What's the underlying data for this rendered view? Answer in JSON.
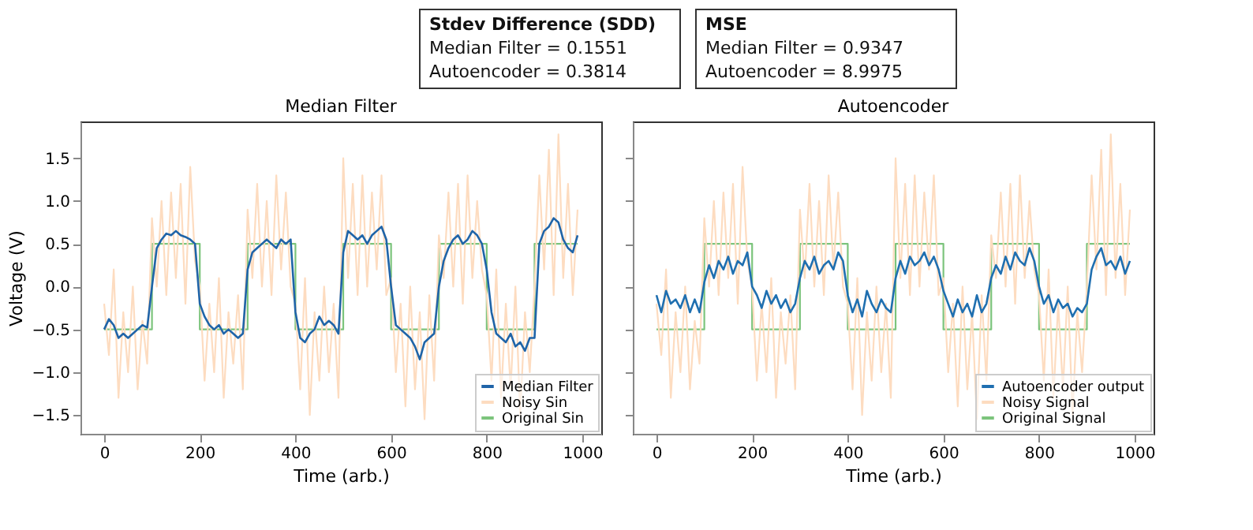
{
  "chart_data": [
    {
      "type": "other",
      "annotations": [
        "Stdev Difference (SDD)\nMedian Filter = 0.1551\nAutoencoder = 0.3814",
        "MSE\nMedian Filter = 0.9347\nAutoencoder = 8.9975"
      ]
    },
    {
      "type": "line",
      "title": "Median Filter",
      "xlabel": "Time (arb.)",
      "ylabel": "Voltage (V)",
      "xlim": [
        -49.5,
        1039.5
      ],
      "ylim": [
        -1.72,
        1.93
      ],
      "xticks": [
        0,
        200,
        400,
        600,
        800,
        1000
      ],
      "yticks": [
        -1.5,
        {
          "value": -1,
          "label": "−1.0"
        },
        -0.5,
        {
          "value": 0,
          "label": "0.0"
        },
        0.5,
        {
          "value": 1,
          "label": "1.0"
        },
        1.5
      ],
      "grid": false,
      "legend": "bottom right",
      "x": [
        0,
        10,
        20,
        30,
        40,
        50,
        60,
        70,
        80,
        90,
        100,
        110,
        120,
        130,
        140,
        150,
        160,
        170,
        180,
        190,
        200,
        210,
        220,
        230,
        240,
        250,
        260,
        270,
        280,
        290,
        300,
        310,
        320,
        330,
        340,
        350,
        360,
        370,
        380,
        390,
        400,
        410,
        420,
        430,
        440,
        450,
        460,
        470,
        480,
        490,
        500,
        510,
        520,
        530,
        540,
        550,
        560,
        570,
        580,
        590,
        600,
        610,
        620,
        630,
        640,
        650,
        660,
        670,
        680,
        690,
        700,
        710,
        720,
        730,
        740,
        750,
        760,
        770,
        780,
        790,
        800,
        810,
        820,
        830,
        840,
        850,
        860,
        870,
        880,
        890,
        900,
        910,
        920,
        930,
        940,
        950,
        960,
        970,
        980,
        990
      ],
      "series": [
        {
          "name": "Median Filter",
          "color": "#1f64a8",
          "type": "line",
          "values": [
            -0.5,
            -0.38,
            -0.45,
            -0.6,
            -0.55,
            -0.6,
            -0.55,
            -0.5,
            -0.45,
            -0.48,
            0.0,
            0.45,
            0.55,
            0.62,
            0.6,
            0.65,
            0.6,
            0.58,
            0.55,
            0.5,
            -0.2,
            -0.35,
            -0.45,
            -0.5,
            -0.45,
            -0.55,
            -0.5,
            -0.55,
            -0.6,
            -0.55,
            0.2,
            0.4,
            0.45,
            0.5,
            0.55,
            0.5,
            0.45,
            0.55,
            0.5,
            0.55,
            -0.3,
            -0.6,
            -0.65,
            -0.55,
            -0.5,
            -0.35,
            -0.45,
            -0.4,
            -0.45,
            -0.55,
            0.4,
            0.65,
            0.6,
            0.55,
            0.6,
            0.5,
            0.6,
            0.65,
            0.7,
            0.55,
            0.0,
            -0.45,
            -0.5,
            -0.55,
            -0.6,
            -0.7,
            -0.85,
            -0.65,
            -0.6,
            -0.55,
            0.0,
            0.3,
            0.45,
            0.55,
            0.6,
            0.5,
            0.55,
            0.65,
            0.6,
            0.5,
            0.2,
            -0.3,
            -0.55,
            -0.6,
            -0.65,
            -0.55,
            -0.7,
            -0.65,
            -0.75,
            -0.6,
            -0.6,
            0.5,
            0.65,
            0.7,
            0.8,
            0.75,
            0.55,
            0.45,
            0.4,
            0.6
          ]
        },
        {
          "name": "Noisy Sin",
          "color": "#fddcc0",
          "type": "line",
          "values": [
            -0.2,
            -0.8,
            0.2,
            -1.3,
            -0.3,
            -1.0,
            0.0,
            -1.2,
            -0.4,
            -0.9,
            0.8,
            0.0,
            1.0,
            -0.1,
            1.1,
            0.1,
            1.2,
            -0.2,
            1.4,
            0.3,
            0.0,
            -1.1,
            -0.2,
            -1.0,
            0.1,
            -1.3,
            -0.3,
            -0.9,
            -0.1,
            -1.2,
            0.9,
            0.1,
            1.2,
            0.0,
            1.0,
            -0.1,
            1.3,
            0.2,
            1.1,
            0.0,
            -0.2,
            -1.2,
            0.1,
            -1.5,
            -0.3,
            -1.1,
            0.0,
            -1.0,
            -0.2,
            -1.3,
            1.5,
            0.1,
            1.2,
            -0.1,
            1.3,
            0.0,
            1.1,
            0.2,
            1.3,
            -0.1,
            0.1,
            -1.0,
            -0.2,
            -1.4,
            0.0,
            -1.2,
            -0.3,
            -1.55,
            -0.1,
            -1.1,
            0.6,
            0.1,
            1.1,
            0.0,
            1.2,
            -0.2,
            1.3,
            0.1,
            1.0,
            0.2,
            -0.1,
            -1.1,
            0.2,
            -1.3,
            -0.2,
            -1.2,
            0.0,
            -1.5,
            -0.3,
            -1.0,
            0.0,
            1.3,
            0.2,
            1.6,
            -0.1,
            1.78,
            0.1,
            1.2,
            -0.1,
            0.9
          ]
        },
        {
          "name": "Original Sin",
          "color": "#7cc47c",
          "type": "step",
          "x": [
            0,
            100,
            200,
            300,
            400,
            500,
            600,
            700,
            800,
            900,
            990
          ],
          "values": [
            -0.5,
            0.5,
            -0.5,
            0.5,
            -0.5,
            0.5,
            -0.5,
            0.5,
            -0.5,
            0.5,
            0.5
          ]
        }
      ]
    },
    {
      "type": "line",
      "title": "Autoencoder",
      "xlabel": "Time (arb.)",
      "xlim": [
        -49.5,
        1039.5
      ],
      "ylim": [
        -1.72,
        1.93
      ],
      "xticks": [
        0,
        200,
        400,
        600,
        800,
        1000
      ],
      "yticks": [
        {
          "value": -1.5,
          "label": null
        },
        {
          "value": -1,
          "label": null
        },
        {
          "value": -0.5,
          "label": null
        },
        {
          "value": 0,
          "label": null
        },
        {
          "value": 0.5,
          "label": null
        },
        {
          "value": 1,
          "label": null
        },
        {
          "value": 1.5,
          "label": null
        }
      ],
      "tick_labels": "x",
      "grid": false,
      "legend": "bottom right",
      "x": [
        0,
        10,
        20,
        30,
        40,
        50,
        60,
        70,
        80,
        90,
        100,
        110,
        120,
        130,
        140,
        150,
        160,
        170,
        180,
        190,
        200,
        210,
        220,
        230,
        240,
        250,
        260,
        270,
        280,
        290,
        300,
        310,
        320,
        330,
        340,
        350,
        360,
        370,
        380,
        390,
        400,
        410,
        420,
        430,
        440,
        450,
        460,
        470,
        480,
        490,
        500,
        510,
        520,
        530,
        540,
        550,
        560,
        570,
        580,
        590,
        600,
        610,
        620,
        630,
        640,
        650,
        660,
        670,
        680,
        690,
        700,
        710,
        720,
        730,
        740,
        750,
        760,
        770,
        780,
        790,
        800,
        810,
        820,
        830,
        840,
        850,
        860,
        870,
        880,
        890,
        900,
        910,
        920,
        930,
        940,
        950,
        960,
        970,
        980,
        990
      ],
      "series": [
        {
          "name": "Autoencoder output",
          "color": "#1f6fb0",
          "type": "line",
          "values": [
            -0.1,
            -0.3,
            -0.05,
            -0.2,
            -0.15,
            -0.25,
            -0.1,
            -0.3,
            -0.15,
            -0.3,
            0.05,
            0.25,
            0.1,
            0.3,
            0.2,
            0.35,
            0.15,
            0.3,
            0.25,
            0.4,
            0.0,
            -0.1,
            -0.25,
            -0.05,
            -0.2,
            -0.1,
            -0.25,
            -0.15,
            -0.3,
            -0.2,
            0.1,
            0.3,
            0.2,
            0.35,
            0.15,
            0.25,
            0.3,
            0.2,
            0.4,
            0.3,
            -0.1,
            -0.3,
            -0.15,
            -0.35,
            -0.05,
            -0.2,
            -0.3,
            -0.15,
            -0.25,
            -0.3,
            0.1,
            0.3,
            0.15,
            0.35,
            0.25,
            0.3,
            0.4,
            0.25,
            0.35,
            0.2,
            -0.05,
            -0.2,
            -0.35,
            -0.15,
            -0.3,
            -0.2,
            -0.35,
            -0.1,
            -0.3,
            -0.2,
            0.1,
            0.25,
            0.15,
            0.35,
            0.2,
            0.4,
            0.3,
            0.25,
            0.45,
            0.3,
            0.0,
            -0.2,
            -0.1,
            -0.3,
            -0.15,
            -0.25,
            -0.2,
            -0.35,
            -0.25,
            -0.3,
            -0.2,
            0.2,
            0.35,
            0.45,
            0.25,
            0.3,
            0.2,
            0.35,
            0.15,
            0.3
          ]
        },
        {
          "name": "Noisy Signal",
          "color": "#fddcc0",
          "type": "line",
          "values": [
            -0.2,
            -0.8,
            0.2,
            -1.3,
            -0.3,
            -1.0,
            0.0,
            -1.2,
            -0.4,
            -0.9,
            0.8,
            0.0,
            1.0,
            -0.1,
            1.1,
            0.1,
            1.2,
            -0.2,
            1.4,
            0.3,
            0.0,
            -1.1,
            -0.2,
            -1.0,
            0.1,
            -1.3,
            -0.3,
            -0.9,
            -0.1,
            -1.2,
            0.9,
            0.1,
            1.2,
            0.0,
            1.0,
            -0.1,
            1.3,
            0.2,
            1.1,
            0.0,
            -0.2,
            -1.2,
            0.1,
            -1.5,
            -0.3,
            -1.1,
            0.0,
            -1.0,
            -0.2,
            -1.3,
            1.5,
            0.1,
            1.2,
            -0.1,
            1.3,
            0.0,
            1.1,
            0.2,
            1.3,
            -0.1,
            0.1,
            -1.0,
            -0.2,
            -1.4,
            0.0,
            -1.2,
            -0.3,
            -1.55,
            -0.1,
            -1.1,
            0.6,
            0.1,
            1.1,
            0.0,
            1.2,
            -0.2,
            1.3,
            0.1,
            1.0,
            0.2,
            -0.1,
            -1.1,
            0.2,
            -1.3,
            -0.2,
            -1.2,
            0.0,
            -1.5,
            -0.3,
            -1.0,
            0.0,
            1.3,
            0.2,
            1.6,
            -0.1,
            1.78,
            0.1,
            1.2,
            -0.1,
            0.9
          ]
        },
        {
          "name": "Original Signal",
          "color": "#7cc47c",
          "type": "step",
          "x": [
            0,
            100,
            200,
            300,
            400,
            500,
            600,
            700,
            800,
            900,
            990
          ],
          "values": [
            -0.5,
            0.5,
            -0.5,
            0.5,
            -0.5,
            0.5,
            -0.5,
            0.5,
            -0.5,
            0.5,
            0.5
          ]
        }
      ]
    }
  ]
}
